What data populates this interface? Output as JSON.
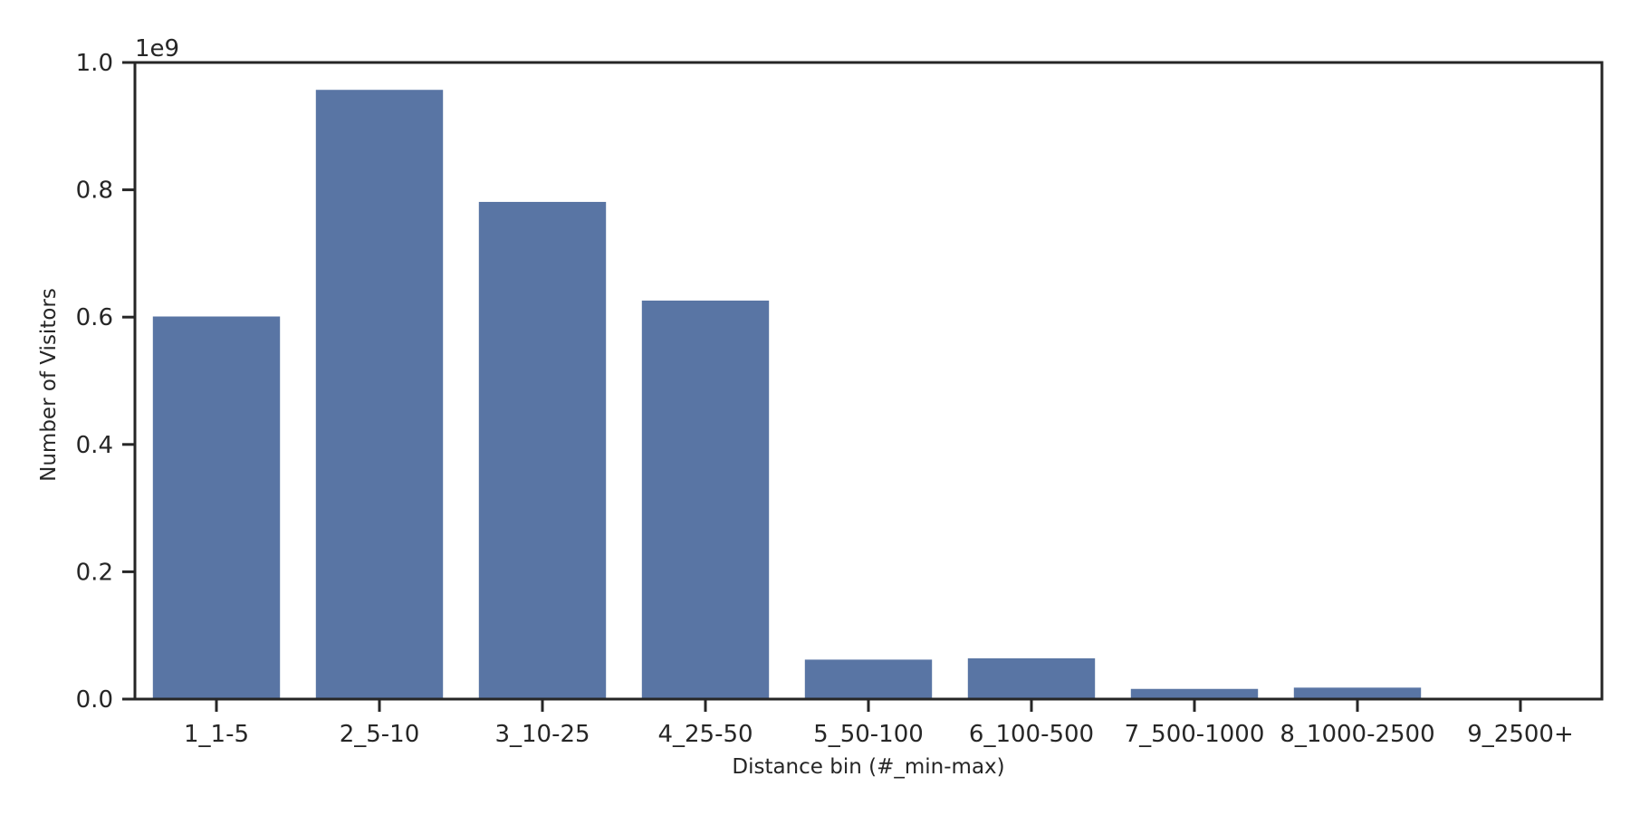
{
  "chart_data": {
    "type": "bar",
    "categories": [
      "1_1-5",
      "2_5-10",
      "3_10-25",
      "4_25-50",
      "5_50-100",
      "6_100-500",
      "7_500-1000",
      "8_1000-2500",
      "9_2500+"
    ],
    "values": [
      601000000,
      957000000,
      781000000,
      626000000,
      62000000,
      64000000,
      16000000,
      18000000,
      0
    ],
    "xlabel": "Distance bin (#_min-max)",
    "ylabel": "Number of Visitors",
    "ylim": [
      0,
      1000000000
    ],
    "yticks": [
      0,
      200000000,
      400000000,
      600000000,
      800000000,
      1000000000
    ],
    "ytick_labels": [
      "0.0",
      "0.2",
      "0.4",
      "0.6",
      "0.8",
      "1.0"
    ],
    "offset_text": "1e9",
    "grid": false,
    "legend": "none",
    "bar_color": "#5975a4",
    "axis_color": "#262626"
  }
}
